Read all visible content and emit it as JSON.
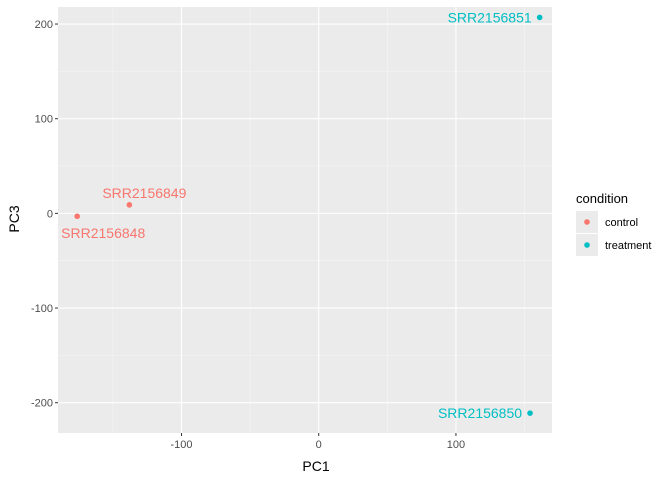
{
  "chart_data": {
    "type": "scatter",
    "xlabel": "PC1",
    "ylabel": "PC3",
    "xlim": [
      -190,
      170
    ],
    "ylim": [
      -232,
      218
    ],
    "x_ticks": [
      -100,
      0,
      100
    ],
    "x_tick_labels": [
      "-100",
      "0",
      "100"
    ],
    "x_minor": [
      -150,
      -50,
      50,
      150
    ],
    "y_ticks": [
      -200,
      -100,
      0,
      100,
      200
    ],
    "y_tick_labels": [
      "-200",
      "-100",
      "0",
      "100",
      "200"
    ],
    "y_minor": [
      -150,
      -50,
      50,
      150
    ],
    "grid": true,
    "legend": {
      "title": "condition",
      "position": "right",
      "entries": [
        {
          "label": "control",
          "color": "#F8766D"
        },
        {
          "label": "treatment",
          "color": "#00BFC4"
        }
      ]
    },
    "points": [
      {
        "label": "SRR2156848",
        "condition": "control",
        "x": -176,
        "y": -3,
        "color": "#F8766D",
        "label_side": "below-right"
      },
      {
        "label": "SRR2156849",
        "condition": "control",
        "x": -138,
        "y": 9,
        "color": "#F8766D",
        "label_side": "above-right"
      },
      {
        "label": "SRR2156850",
        "condition": "treatment",
        "x": 154,
        "y": -211,
        "color": "#00BFC4",
        "label_side": "left"
      },
      {
        "label": "SRR2156851",
        "condition": "treatment",
        "x": 161,
        "y": 207,
        "color": "#00BFC4",
        "label_side": "left"
      }
    ],
    "colors": {
      "panel": "#EBEBEB",
      "grid_major": "#FFFFFF",
      "control": "#F8766D",
      "treatment": "#00BFC4"
    }
  }
}
